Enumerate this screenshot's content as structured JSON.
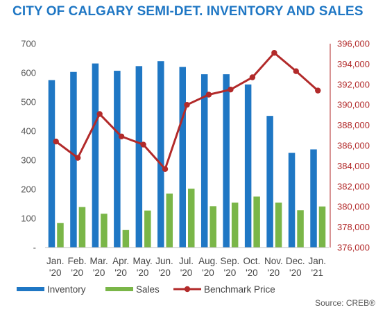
{
  "chart_data": {
    "type": "bar",
    "title": "CITY OF CALGARY SEMI-DET. INVENTORY AND SALES",
    "categories_line1": [
      "Jan.",
      "Feb.",
      "Mar.",
      "Apr.",
      "May.",
      "Jun.",
      "Jul.",
      "Aug.",
      "Sep.",
      "Oct.",
      "Nov.",
      "Dec.",
      "Jan."
    ],
    "categories_line2": [
      "'20",
      "'20",
      "'20",
      "'20",
      "'20",
      "'20",
      "'20",
      "'20",
      "'20",
      "'20",
      "'20",
      "'20",
      "'21"
    ],
    "series": [
      {
        "name": "Inventory",
        "type": "bar",
        "axis": "left",
        "color": "#1f77c4",
        "values": [
          575,
          603,
          632,
          607,
          623,
          640,
          620,
          595,
          595,
          560,
          452,
          325,
          337
        ]
      },
      {
        "name": "Sales",
        "type": "bar",
        "axis": "left",
        "color": "#7ab648",
        "values": [
          84,
          139,
          116,
          60,
          127,
          185,
          202,
          142,
          154,
          175,
          154,
          128,
          141
        ]
      },
      {
        "name": "Benchmark Price",
        "type": "line",
        "axis": "right",
        "color": "#b22a2a",
        "values": [
          386400,
          384800,
          389100,
          386900,
          386100,
          383700,
          390000,
          391000,
          391500,
          392700,
          395100,
          393300,
          391400
        ]
      }
    ],
    "y_left": {
      "ylim": [
        0,
        700
      ],
      "ticks": [
        0,
        100,
        200,
        300,
        400,
        500,
        600,
        700
      ],
      "tick_labels": [
        "-",
        "100",
        "200",
        "300",
        "400",
        "500",
        "600",
        "700"
      ]
    },
    "y_right": {
      "ylim": [
        376000,
        396000
      ],
      "ticks": [
        376000,
        378000,
        380000,
        382000,
        384000,
        386000,
        388000,
        390000,
        392000,
        394000,
        396000
      ],
      "tick_labels": [
        "376,000",
        "378,000",
        "380,000",
        "382,000",
        "384,000",
        "386,000",
        "388,000",
        "390,000",
        "392,000",
        "394,000",
        "396,000"
      ]
    },
    "grid": false,
    "legend_position": "bottom-left"
  },
  "source_note": "Source: CREB®"
}
